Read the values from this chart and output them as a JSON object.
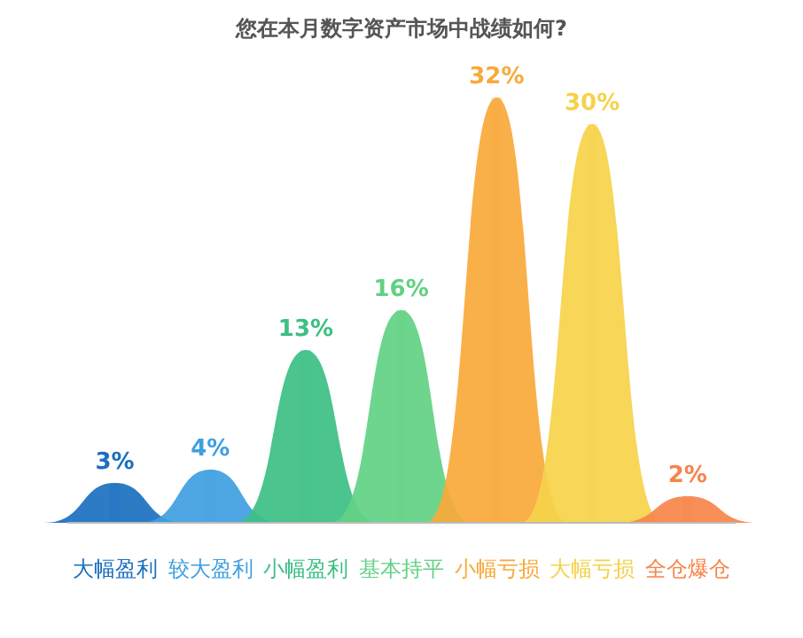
{
  "chart_data": {
    "type": "bar",
    "title": "您在本月数字资产市场中战绩如何?",
    "categories": [
      "大幅盈利",
      "较大盈利",
      "小幅盈利",
      "基本持平",
      "小幅亏损",
      "大幅亏损",
      "全仓爆仓"
    ],
    "values": [
      3,
      4,
      13,
      16,
      32,
      30,
      2
    ],
    "value_labels": [
      "3%",
      "4%",
      "13%",
      "16%",
      "32%",
      "30%",
      "2%"
    ],
    "colors": [
      "#1b6fc0",
      "#3fa0e0",
      "#3cbf84",
      "#62d184",
      "#f8a93a",
      "#f6d24a",
      "#f7844a"
    ]
  }
}
